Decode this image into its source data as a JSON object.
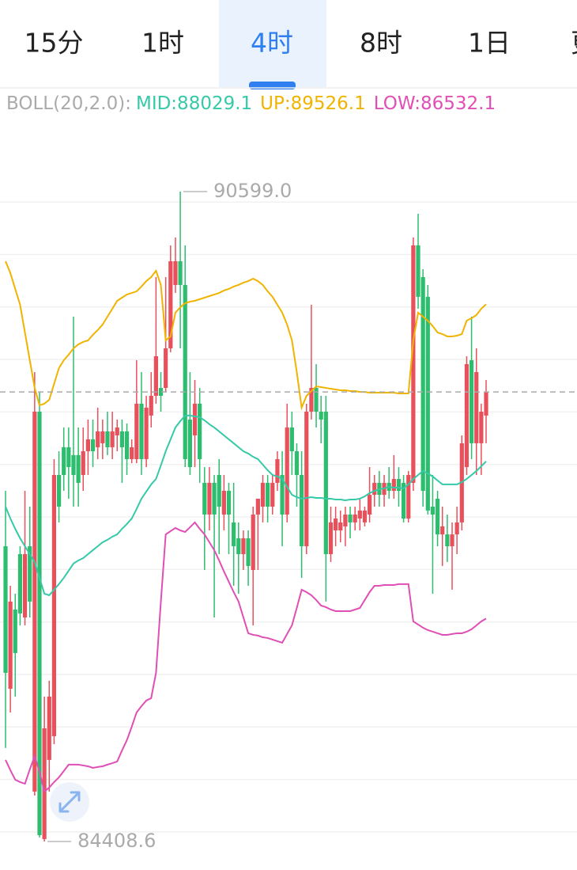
{
  "tabs": [
    "15分",
    "1时",
    "4时",
    "8时",
    "1日",
    "更"
  ],
  "chart_data": {
    "type": "candlestick",
    "indicator": "BOLL(20,2.0):",
    "open": [
      87221,
      85864,
      86618,
      87146,
      86543,
      87221,
      84884,
      88503,
      84432,
      85186,
      85412,
      87900,
      88164,
      88164,
      88089,
      88089,
      87900,
      88126,
      88239,
      88164,
      88202,
      88315,
      88164,
      88277,
      88315,
      88315,
      88051,
      88051,
      88579,
      88051,
      88466,
      88654,
      88729,
      88729,
      89106,
      89710,
      89936,
      89710,
      88428,
      88277,
      88579,
      87825,
      87523,
      87825,
      87900,
      87523,
      87749,
      87448,
      87297,
      87146,
      87297,
      86995,
      87523,
      87598,
      87825,
      87598,
      87825,
      87900,
      87523,
      88352,
      88126,
      87900,
      87221,
      88503,
      88729,
      88503,
      88503,
      87146,
      87372,
      87372,
      87410,
      87523,
      87448,
      87485,
      87448,
      87523,
      87711,
      87825,
      87711,
      87825,
      87749,
      87862,
      87825,
      87485,
      87825,
      90087,
      89785,
      89597,
      87598,
      87674,
      87334,
      87334,
      87221,
      87334,
      87448,
      87975,
      88993,
      88202,
      88202,
      88466
    ],
    "high": [
      87749,
      86844,
      86769,
      87221,
      87749,
      87598,
      88880,
      88691,
      85789,
      85940,
      88051,
      88126,
      88352,
      88352,
      89408,
      88352,
      88352,
      88428,
      88428,
      88541,
      88428,
      88503,
      88503,
      88428,
      88428,
      88390,
      88239,
      88993,
      88880,
      88654,
      88880,
      89785,
      88880,
      89785,
      90087,
      90162,
      90599,
      90087,
      88880,
      88805,
      88729,
      87975,
      87975,
      87900,
      88051,
      87900,
      87825,
      87825,
      87448,
      87372,
      87372,
      87598,
      87674,
      87900,
      87900,
      87900,
      88126,
      88126,
      88579,
      88503,
      88202,
      88126,
      88579,
      89521,
      88956,
      88654,
      88654,
      87598,
      87598,
      87561,
      87598,
      87598,
      87598,
      87674,
      87598,
      87975,
      87900,
      87938,
      87900,
      87975,
      88089,
      87975,
      87900,
      87938,
      90162,
      90388,
      89860,
      89710,
      87900,
      87749,
      87598,
      87523,
      87448,
      87598,
      88277,
      89031,
      89408,
      89106,
      88579,
      88805
    ],
    "low": [
      85299,
      85638,
      85789,
      86467,
      86467,
      86543,
      84846,
      84447,
      84408.6,
      84884,
      85336,
      87448,
      87749,
      87674,
      87598,
      87598,
      87749,
      87900,
      87975,
      88051,
      88051,
      88089,
      88051,
      88126,
      87825,
      87900,
      88013,
      88013,
      87900,
      87975,
      88352,
      88579,
      88503,
      88691,
      89069,
      89634,
      89106,
      87975,
      87900,
      87975,
      87825,
      86995,
      87372,
      86543,
      87146,
      87372,
      87146,
      86844,
      86769,
      86995,
      86844,
      86467,
      86995,
      87448,
      87448,
      87523,
      87749,
      87221,
      87448,
      87900,
      87598,
      86920,
      87146,
      88428,
      88352,
      88202,
      86694,
      87071,
      87221,
      87259,
      87221,
      87297,
      87372,
      87372,
      87410,
      87448,
      87598,
      87598,
      87598,
      87674,
      87674,
      87598,
      87448,
      87448,
      87749,
      89483,
      87598,
      87523,
      86769,
      87221,
      87033,
      87071,
      86807,
      87146,
      87372,
      87900,
      88051,
      87900,
      87900,
      88202
    ],
    "close": [
      86015,
      86694,
      86204,
      86581,
      87146,
      86694,
      88503,
      84469,
      85487,
      85789,
      87900,
      87598,
      87900,
      87975,
      87900,
      87825,
      88126,
      88239,
      88126,
      88315,
      88315,
      88164,
      88315,
      88352,
      88164,
      88051,
      88164,
      88579,
      88051,
      88541,
      88654,
      89031,
      88654,
      89106,
      89936,
      89936,
      89710,
      88051,
      87975,
      88579,
      88051,
      87523,
      87825,
      87523,
      87598,
      87749,
      87523,
      87221,
      87146,
      87297,
      87033,
      87523,
      87674,
      87825,
      87598,
      87825,
      88051,
      87523,
      88352,
      88126,
      87900,
      87221,
      88503,
      88729,
      88503,
      88428,
      87146,
      87448,
      87485,
      87448,
      87523,
      87448,
      87523,
      87561,
      87561,
      87711,
      87825,
      87711,
      87825,
      87749,
      87862,
      87749,
      87485,
      87900,
      90087,
      89597,
      87749,
      87561,
      87523,
      87334,
      87410,
      87221,
      87334,
      87448,
      88202,
      88956,
      88202,
      88880,
      88503,
      88691
    ],
    "series": [
      {
        "name": "MID:88029.1",
        "color": "#36c9a8",
        "values": [
          87598,
          87485,
          87387,
          87297,
          87221,
          87146,
          87071,
          86920,
          86769,
          86754,
          86807,
          86860,
          86920,
          86988,
          87056,
          87086,
          87108,
          87146,
          87184,
          87221,
          87259,
          87282,
          87312,
          87334,
          87387,
          87433,
          87485,
          87576,
          87674,
          87742,
          87810,
          87862,
          87991,
          88126,
          88239,
          88352,
          88413,
          88466,
          88466,
          88458,
          88450,
          88420,
          88383,
          88352,
          88315,
          88277,
          88239,
          88202,
          88164,
          88126,
          88104,
          88073,
          88051,
          87998,
          87945,
          87900,
          87885,
          87862,
          87787,
          87711,
          87689,
          87674,
          87681,
          87689,
          87681,
          87681,
          87674,
          87674,
          87666,
          87666,
          87659,
          87666,
          87666,
          87674,
          87696,
          87727,
          87749,
          87764,
          87772,
          87787,
          87779,
          87779,
          87772,
          87810,
          87862,
          87900,
          87938,
          87915,
          87885,
          87847,
          87810,
          87810,
          87810,
          87810,
          87832,
          87862,
          87900,
          87938,
          87983,
          88029.1
        ]
      },
      {
        "name": "UP:89526.1",
        "color": "#f0b400",
        "values": [
          89936,
          89823,
          89672,
          89521,
          89257,
          88993,
          88729,
          88564,
          88579,
          88616,
          88767,
          88918,
          88993,
          89046,
          89106,
          89144,
          89167,
          89182,
          89235,
          89280,
          89333,
          89408,
          89483,
          89559,
          89589,
          89619,
          89634,
          89649,
          89695,
          89747,
          89785,
          89845,
          89710,
          89182,
          89220,
          89446,
          89498,
          89536,
          89551,
          89559,
          89574,
          89589,
          89604,
          89619,
          89634,
          89657,
          89672,
          89695,
          89710,
          89732,
          89747,
          89770,
          89747,
          89710,
          89649,
          89597,
          89521,
          89446,
          89333,
          89182,
          88880,
          88541,
          88654,
          88699,
          88744,
          88737,
          88729,
          88722,
          88714,
          88707,
          88707,
          88699,
          88699,
          88691,
          88691,
          88684,
          88684,
          88684,
          88684,
          88684,
          88684,
          88677,
          88677,
          88677,
          89182,
          89446,
          89408,
          89370,
          89318,
          89257,
          89242,
          89220,
          89220,
          89227,
          89242,
          89370,
          89393,
          89423,
          89483,
          89526.1
        ]
      },
      {
        "name": "LOW:86532.1",
        "color": "#e04fb5",
        "values": [
          85186,
          85088,
          84997,
          84975,
          84959,
          85095,
          85223,
          85073,
          84884,
          84922,
          84975,
          85020,
          85080,
          85141,
          85141,
          85141,
          85133,
          85125,
          85110,
          85118,
          85125,
          85141,
          85155,
          85171,
          85276,
          85374,
          85502,
          85638,
          85698,
          85751,
          85774,
          86015,
          86694,
          87334,
          87365,
          87395,
          87372,
          87357,
          87402,
          87448,
          87387,
          87334,
          87259,
          87184,
          87086,
          86980,
          86882,
          86784,
          86694,
          86543,
          86392,
          86377,
          86370,
          86354,
          86347,
          86332,
          86317,
          86302,
          86385,
          86467,
          86633,
          86807,
          86784,
          86754,
          86709,
          86656,
          86641,
          86618,
          86603,
          86603,
          86603,
          86603,
          86618,
          86633,
          86709,
          86784,
          86844,
          86844,
          86852,
          86852,
          86852,
          86860,
          86860,
          86860,
          86505,
          86475,
          86445,
          86422,
          86407,
          86392,
          86377,
          86377,
          86385,
          86392,
          86392,
          86407,
          86430,
          86467,
          86505,
          86532.1
        ]
      }
    ],
    "ylim": [
      84205,
      91444
    ],
    "ygrid": [
      90500,
      90000,
      89500,
      89000,
      88500,
      88000,
      87500,
      87000,
      86500,
      86000,
      85500,
      85000,
      84500
    ],
    "colors": {
      "up": "#e8505b",
      "down": "#2dbd6e"
    },
    "annotations": [
      {
        "value": 90599,
        "label": "90599.0"
      },
      {
        "value": 84408.6,
        "label": "84408.6"
      }
    ]
  }
}
